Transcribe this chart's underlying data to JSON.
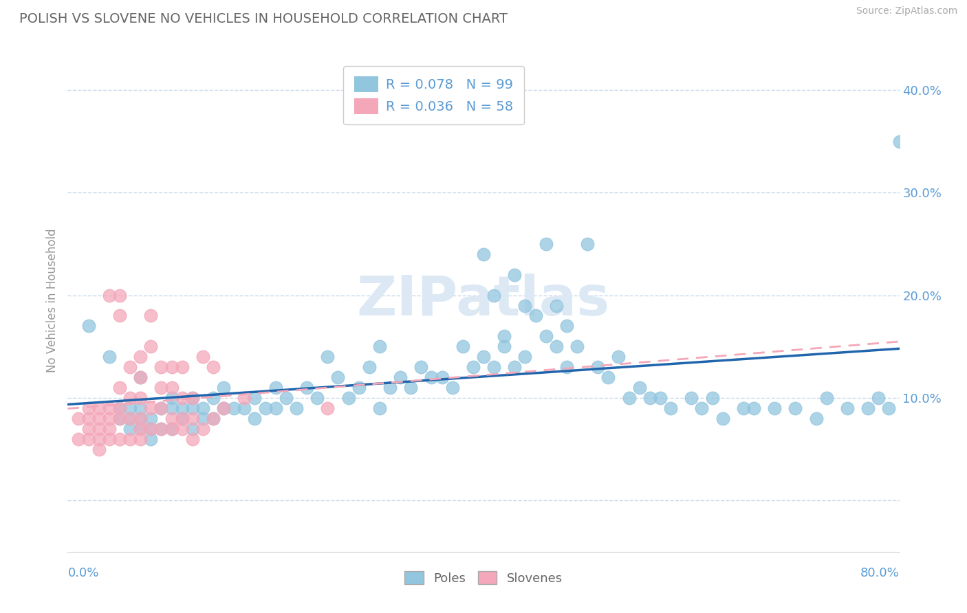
{
  "title": "POLISH VS SLOVENE NO VEHICLES IN HOUSEHOLD CORRELATION CHART",
  "source": "Source: ZipAtlas.com",
  "ylabel": "No Vehicles in Household",
  "yticks": [
    0.0,
    0.1,
    0.2,
    0.3,
    0.4
  ],
  "ytick_labels": [
    "",
    "10.0%",
    "20.0%",
    "30.0%",
    "40.0%"
  ],
  "xlim": [
    0.0,
    0.8
  ],
  "ylim": [
    -0.05,
    0.44
  ],
  "poles_R": 0.078,
  "poles_N": 99,
  "slovenes_R": 0.036,
  "slovenes_N": 58,
  "poles_color": "#92c5de",
  "slovenes_color": "#f4a7b9",
  "poles_line_color": "#2166ac",
  "slovenes_line_color": "#d6604d",
  "watermark_color": "#dce9f5",
  "title_color": "#666666",
  "axis_label_color": "#5b9bd5",
  "grid_color": "#c8d8ea",
  "background_color": "#ffffff",
  "legend_box_color": "#f0f5fa",
  "poles_x": [
    0.02,
    0.04,
    0.05,
    0.05,
    0.06,
    0.06,
    0.06,
    0.07,
    0.07,
    0.07,
    0.07,
    0.08,
    0.08,
    0.08,
    0.09,
    0.09,
    0.1,
    0.1,
    0.1,
    0.11,
    0.11,
    0.12,
    0.12,
    0.12,
    0.13,
    0.13,
    0.14,
    0.14,
    0.15,
    0.15,
    0.16,
    0.17,
    0.18,
    0.18,
    0.19,
    0.2,
    0.2,
    0.21,
    0.22,
    0.23,
    0.24,
    0.25,
    0.26,
    0.27,
    0.28,
    0.29,
    0.3,
    0.3,
    0.31,
    0.32,
    0.33,
    0.34,
    0.35,
    0.36,
    0.37,
    0.38,
    0.39,
    0.4,
    0.41,
    0.42,
    0.43,
    0.44,
    0.45,
    0.46,
    0.47,
    0.48,
    0.49,
    0.5,
    0.51,
    0.52,
    0.53,
    0.54,
    0.55,
    0.56,
    0.57,
    0.58,
    0.6,
    0.61,
    0.62,
    0.63,
    0.65,
    0.66,
    0.68,
    0.7,
    0.72,
    0.73,
    0.75,
    0.77,
    0.78,
    0.79,
    0.8,
    0.43,
    0.44,
    0.46,
    0.47,
    0.48,
    0.4,
    0.41,
    0.42
  ],
  "poles_y": [
    0.17,
    0.14,
    0.09,
    0.08,
    0.09,
    0.08,
    0.07,
    0.12,
    0.09,
    0.08,
    0.07,
    0.08,
    0.07,
    0.06,
    0.09,
    0.07,
    0.1,
    0.09,
    0.07,
    0.09,
    0.08,
    0.1,
    0.09,
    0.07,
    0.09,
    0.08,
    0.1,
    0.08,
    0.11,
    0.09,
    0.09,
    0.09,
    0.1,
    0.08,
    0.09,
    0.11,
    0.09,
    0.1,
    0.09,
    0.11,
    0.1,
    0.14,
    0.12,
    0.1,
    0.11,
    0.13,
    0.15,
    0.09,
    0.11,
    0.12,
    0.11,
    0.13,
    0.12,
    0.12,
    0.11,
    0.15,
    0.13,
    0.14,
    0.13,
    0.16,
    0.13,
    0.14,
    0.18,
    0.16,
    0.19,
    0.17,
    0.15,
    0.25,
    0.13,
    0.12,
    0.14,
    0.1,
    0.11,
    0.1,
    0.1,
    0.09,
    0.1,
    0.09,
    0.1,
    0.08,
    0.09,
    0.09,
    0.09,
    0.09,
    0.08,
    0.1,
    0.09,
    0.09,
    0.1,
    0.09,
    0.35,
    0.22,
    0.19,
    0.25,
    0.15,
    0.13,
    0.24,
    0.2,
    0.15
  ],
  "slovenes_x": [
    0.01,
    0.01,
    0.02,
    0.02,
    0.02,
    0.02,
    0.03,
    0.03,
    0.03,
    0.03,
    0.03,
    0.04,
    0.04,
    0.04,
    0.04,
    0.04,
    0.05,
    0.05,
    0.05,
    0.05,
    0.05,
    0.05,
    0.06,
    0.06,
    0.06,
    0.06,
    0.07,
    0.07,
    0.07,
    0.07,
    0.07,
    0.07,
    0.08,
    0.08,
    0.08,
    0.08,
    0.09,
    0.09,
    0.09,
    0.09,
    0.1,
    0.1,
    0.1,
    0.1,
    0.11,
    0.11,
    0.11,
    0.11,
    0.12,
    0.12,
    0.12,
    0.13,
    0.13,
    0.14,
    0.14,
    0.15,
    0.17,
    0.25
  ],
  "slovenes_y": [
    0.08,
    0.06,
    0.09,
    0.08,
    0.07,
    0.06,
    0.09,
    0.08,
    0.07,
    0.06,
    0.05,
    0.2,
    0.09,
    0.08,
    0.07,
    0.06,
    0.2,
    0.18,
    0.11,
    0.09,
    0.08,
    0.06,
    0.13,
    0.1,
    0.08,
    0.06,
    0.14,
    0.12,
    0.1,
    0.08,
    0.07,
    0.06,
    0.18,
    0.15,
    0.09,
    0.07,
    0.13,
    0.11,
    0.09,
    0.07,
    0.13,
    0.11,
    0.08,
    0.07,
    0.13,
    0.1,
    0.08,
    0.07,
    0.1,
    0.08,
    0.06,
    0.14,
    0.07,
    0.13,
    0.08,
    0.09,
    0.1,
    0.09
  ]
}
